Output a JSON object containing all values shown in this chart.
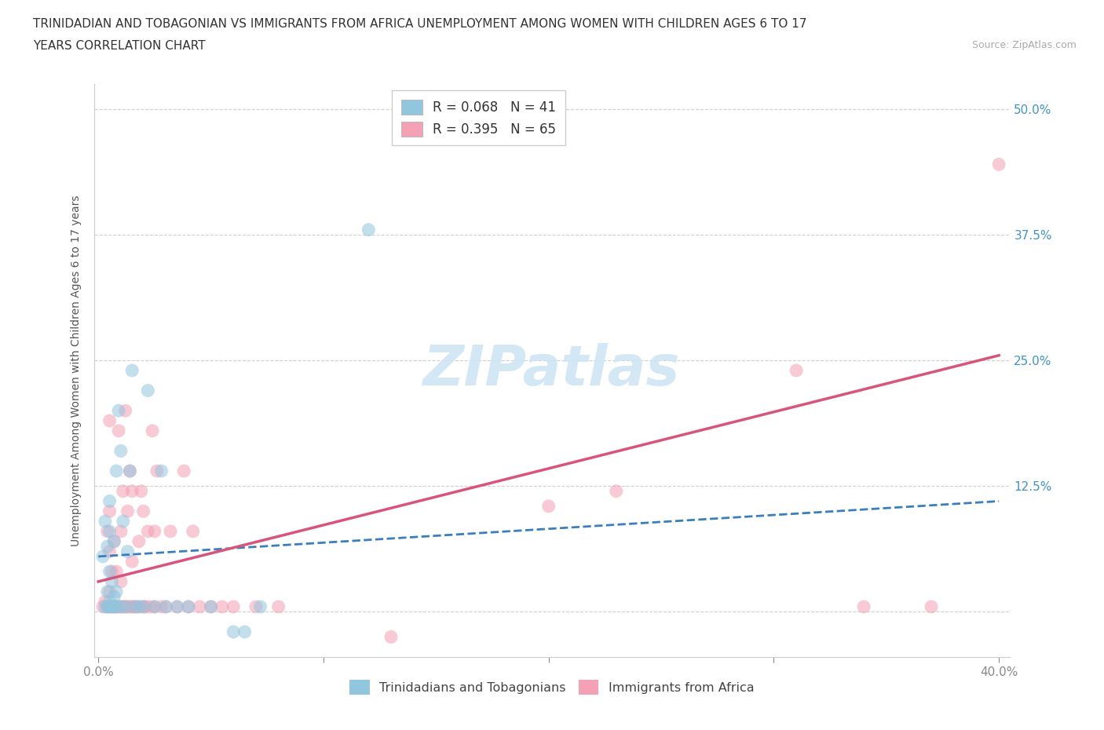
{
  "title_line1": "TRINIDADIAN AND TOBAGONIAN VS IMMIGRANTS FROM AFRICA UNEMPLOYMENT AMONG WOMEN WITH CHILDREN AGES 6 TO 17",
  "title_line2": "YEARS CORRELATION CHART",
  "source": "Source: ZipAtlas.com",
  "ylabel": "Unemployment Among Women with Children Ages 6 to 17 years",
  "xlim": [
    -0.002,
    0.405
  ],
  "ylim": [
    -0.045,
    0.525
  ],
  "xtick_pos": [
    0.0,
    0.1,
    0.2,
    0.3,
    0.4
  ],
  "xtick_labels": [
    "0.0%",
    "",
    "",
    "",
    "40.0%"
  ],
  "ytick_pos": [
    0.0,
    0.125,
    0.25,
    0.375,
    0.5
  ],
  "ytick_labels": [
    "",
    "12.5%",
    "25.0%",
    "37.5%",
    "50.0%"
  ],
  "legend_R1": "R = 0.068",
  "legend_N1": "N = 41",
  "legend_R2": "R = 0.395",
  "legend_N2": "N = 65",
  "color_blue": "#92c5de",
  "color_pink": "#f4a0b5",
  "color_trend_blue": "#3a7ebf",
  "color_trend_pink": "#d9547a",
  "watermark_text": "ZIPatlas",
  "watermark_color": "#cfe5f3",
  "blue_scatter_x": [
    0.002,
    0.003,
    0.003,
    0.004,
    0.004,
    0.004,
    0.005,
    0.005,
    0.005,
    0.005,
    0.005,
    0.006,
    0.006,
    0.007,
    0.007,
    0.007,
    0.008,
    0.008,
    0.008,
    0.009,
    0.01,
    0.01,
    0.011,
    0.012,
    0.013,
    0.014,
    0.015,
    0.016,
    0.018,
    0.02,
    0.022,
    0.025,
    0.028,
    0.03,
    0.035,
    0.04,
    0.05,
    0.06,
    0.065,
    0.072,
    0.12
  ],
  "blue_scatter_y": [
    0.055,
    0.005,
    0.09,
    0.005,
    0.02,
    0.065,
    0.005,
    0.01,
    0.04,
    0.08,
    0.11,
    0.005,
    0.03,
    0.005,
    0.015,
    0.07,
    0.005,
    0.02,
    0.14,
    0.2,
    0.005,
    0.16,
    0.09,
    0.005,
    0.06,
    0.14,
    0.24,
    0.005,
    0.005,
    0.005,
    0.22,
    0.005,
    0.14,
    0.005,
    0.005,
    0.005,
    0.005,
    -0.02,
    -0.02,
    0.005,
    0.38
  ],
  "pink_scatter_x": [
    0.002,
    0.003,
    0.004,
    0.004,
    0.005,
    0.005,
    0.005,
    0.005,
    0.005,
    0.006,
    0.006,
    0.007,
    0.007,
    0.008,
    0.008,
    0.009,
    0.009,
    0.01,
    0.01,
    0.01,
    0.011,
    0.011,
    0.012,
    0.012,
    0.013,
    0.013,
    0.014,
    0.014,
    0.015,
    0.015,
    0.015,
    0.016,
    0.017,
    0.018,
    0.018,
    0.019,
    0.02,
    0.02,
    0.021,
    0.022,
    0.023,
    0.024,
    0.025,
    0.025,
    0.026,
    0.028,
    0.03,
    0.032,
    0.035,
    0.038,
    0.04,
    0.042,
    0.045,
    0.05,
    0.055,
    0.06,
    0.07,
    0.08,
    0.13,
    0.2,
    0.23,
    0.31,
    0.34,
    0.37,
    0.4
  ],
  "pink_scatter_y": [
    0.005,
    0.01,
    0.005,
    0.08,
    0.005,
    0.02,
    0.06,
    0.1,
    0.19,
    0.005,
    0.04,
    0.005,
    0.07,
    0.005,
    0.04,
    0.18,
    0.005,
    0.005,
    0.03,
    0.08,
    0.005,
    0.12,
    0.005,
    0.2,
    0.005,
    0.1,
    0.005,
    0.14,
    0.005,
    0.05,
    0.12,
    0.005,
    0.005,
    0.005,
    0.07,
    0.12,
    0.005,
    0.1,
    0.005,
    0.08,
    0.005,
    0.18,
    0.005,
    0.08,
    0.14,
    0.005,
    0.005,
    0.08,
    0.005,
    0.14,
    0.005,
    0.08,
    0.005,
    0.005,
    0.005,
    0.005,
    0.005,
    0.005,
    -0.025,
    0.105,
    0.12,
    0.24,
    0.005,
    0.005,
    0.445
  ],
  "blue_trend_x": [
    0.0,
    0.4
  ],
  "blue_trend_y": [
    0.055,
    0.11
  ],
  "pink_trend_x": [
    0.0,
    0.4
  ],
  "pink_trend_y": [
    0.03,
    0.255
  ],
  "figsize": [
    14.06,
    9.3
  ],
  "dpi": 100
}
